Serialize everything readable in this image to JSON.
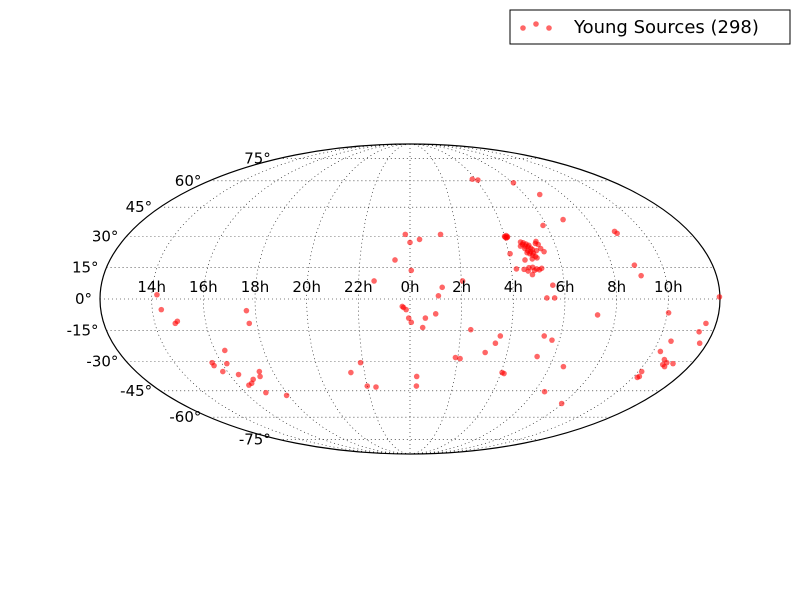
{
  "chart_data": {
    "type": "scatter",
    "projection": "mollweide",
    "grid": true,
    "legend_position": "top-right",
    "colors": {
      "points": "#ff0000",
      "grid": "#000000",
      "frame": "#000000"
    },
    "x_tick_labels": [
      {
        "ra_hours": 14,
        "label": "14h"
      },
      {
        "ra_hours": 16,
        "label": "16h"
      },
      {
        "ra_hours": 18,
        "label": "18h"
      },
      {
        "ra_hours": 20,
        "label": "20h"
      },
      {
        "ra_hours": 22,
        "label": "22h"
      },
      {
        "ra_hours": 0,
        "label": "0h"
      },
      {
        "ra_hours": 2,
        "label": "2h"
      },
      {
        "ra_hours": 4,
        "label": "4h"
      },
      {
        "ra_hours": 6,
        "label": "6h"
      },
      {
        "ra_hours": 8,
        "label": "8h"
      },
      {
        "ra_hours": 10,
        "label": "10h"
      }
    ],
    "y_tick_labels": [
      {
        "dec": 75,
        "label": "75°"
      },
      {
        "dec": 60,
        "label": "60°"
      },
      {
        "dec": 45,
        "label": "45°"
      },
      {
        "dec": 30,
        "label": "30°"
      },
      {
        "dec": 15,
        "label": "15°"
      },
      {
        "dec": 0,
        "label": "0°"
      },
      {
        "dec": -15,
        "label": "-15°"
      },
      {
        "dec": -30,
        "label": "-30°"
      },
      {
        "dec": -45,
        "label": "-45°"
      },
      {
        "dec": -60,
        "label": "-60°"
      },
      {
        "dec": -75,
        "label": "-75°"
      }
    ],
    "series": [
      {
        "name": "Young Sources (298)",
        "points": [
          [
            4.05,
            29.2
          ],
          [
            4.1,
            29.5
          ],
          [
            4.0,
            30.0
          ],
          [
            4.08,
            30.4
          ],
          [
            4.12,
            29.8
          ],
          [
            4.02,
            29.6
          ],
          [
            4.6,
            27.2
          ],
          [
            4.7,
            26.8
          ],
          [
            4.8,
            26.2
          ],
          [
            4.9,
            25.6
          ],
          [
            4.65,
            26.0
          ],
          [
            4.75,
            25.2
          ],
          [
            4.85,
            24.8
          ],
          [
            4.95,
            24.2
          ],
          [
            5.0,
            23.5
          ],
          [
            4.7,
            24.0
          ],
          [
            4.8,
            23.0
          ],
          [
            4.9,
            22.5
          ],
          [
            5.0,
            21.8
          ],
          [
            4.85,
            21.5
          ],
          [
            4.95,
            20.8
          ],
          [
            5.05,
            20.2
          ],
          [
            5.1,
            19.5
          ],
          [
            4.9,
            19.0
          ],
          [
            5.15,
            23.0
          ],
          [
            5.2,
            26.5
          ],
          [
            5.25,
            27.5
          ],
          [
            5.3,
            26.0
          ],
          [
            5.35,
            24.0
          ],
          [
            4.55,
            25.2
          ],
          [
            4.75,
            22.0
          ],
          [
            4.6,
            18.5
          ],
          [
            4.7,
            14.8
          ],
          [
            4.85,
            15.0
          ],
          [
            5.0,
            14.2
          ],
          [
            5.2,
            14.5
          ],
          [
            4.8,
            11.5
          ],
          [
            4.5,
            14.0
          ],
          [
            4.2,
            14.2
          ],
          [
            4.05,
            21.5
          ],
          [
            5.45,
            22.5
          ],
          [
            4.65,
            13.2
          ],
          [
            4.9,
            13.5
          ],
          [
            5.1,
            13.8
          ],
          [
            5.55,
            6.5
          ],
          [
            5.3,
            0.5
          ],
          [
            5.6,
            0.5
          ],
          [
            5.85,
            35.5
          ],
          [
            6.05,
            58.8
          ],
          [
            6.8,
            52.0
          ],
          [
            6.9,
            38.5
          ],
          [
            3.8,
            61.0
          ],
          [
            4.1,
            60.5
          ],
          [
            0.4,
            28.5
          ],
          [
            -0.2,
            31.0
          ],
          [
            0.0,
            27.0
          ],
          [
            1.3,
            31.0
          ],
          [
            -0.6,
            18.5
          ],
          [
            0.05,
            13.5
          ],
          [
            1.25,
            5.5
          ],
          [
            1.1,
            1.5
          ],
          [
            2.05,
            8.5
          ],
          [
            -1.4,
            8.5
          ],
          [
            -0.3,
            -3.5
          ],
          [
            -0.25,
            -4.0
          ],
          [
            -0.15,
            -5.0
          ],
          [
            -0.05,
            -9.0
          ],
          [
            0.05,
            -11.0
          ],
          [
            0.5,
            -13.5
          ],
          [
            1.0,
            -7.0
          ],
          [
            2.4,
            -14.5
          ],
          [
            3.6,
            -17.5
          ],
          [
            3.45,
            -21.0
          ],
          [
            3.1,
            -25.5
          ],
          [
            5.35,
            -17.5
          ],
          [
            5.7,
            -19.5
          ],
          [
            5.3,
            -27.5
          ],
          [
            4.05,
            -35.5
          ],
          [
            4.15,
            -36.0
          ],
          [
            2.1,
            -28.5
          ],
          [
            0.3,
            -37.5
          ],
          [
            0.3,
            -42.5
          ],
          [
            -2.1,
            -30.5
          ],
          [
            -2.0,
            -42.5
          ],
          [
            -2.6,
            -35.5
          ],
          [
            -1.6,
            -43.0
          ],
          [
            -6.35,
            -5.5
          ],
          [
            -6.3,
            -11.5
          ],
          [
            -9.1,
            -10.5
          ],
          [
            -7.6,
            -24.5
          ],
          [
            -8.4,
            -30.5
          ],
          [
            -8.4,
            -32.0
          ],
          [
            -7.8,
            -31.0
          ],
          [
            -8.2,
            -35.0
          ],
          [
            -7.1,
            -39.0
          ],
          [
            -7.0,
            -46.0
          ],
          [
            -6.7,
            -37.5
          ],
          [
            -7.6,
            -36.5
          ],
          [
            -6.6,
            -35.0
          ],
          [
            -6.1,
            -47.5
          ],
          [
            -7.5,
            -42.0
          ],
          [
            -7.3,
            -41.0
          ],
          [
            -9.8,
            2.0
          ],
          [
            -9.2,
            -11.5
          ],
          [
            7.3,
            -7.5
          ],
          [
            6.6,
            -32.5
          ],
          [
            6.5,
            -45.5
          ],
          [
            7.95,
            -52.0
          ],
          [
            8.85,
            31.5
          ],
          [
            8.8,
            32.5
          ],
          [
            8.9,
            16.0
          ],
          [
            9.05,
            11.0
          ],
          [
            10.05,
            -6.5
          ],
          [
            10.5,
            -20.0
          ],
          [
            10.3,
            -25.0
          ],
          [
            10.7,
            -29.0
          ],
          [
            10.9,
            -30.5
          ],
          [
            10.8,
            -31.5
          ],
          [
            10.95,
            -32.5
          ],
          [
            11.2,
            -31.0
          ],
          [
            11.45,
            -15.5
          ],
          [
            11.6,
            -11.5
          ],
          [
            11.7,
            -21.0
          ],
          [
            10.15,
            -35.0
          ],
          [
            10.25,
            -37.5
          ],
          [
            10.2,
            -38.0
          ],
          [
            11.98,
            1.0
          ],
          [
            -9.65,
            -5.0
          ],
          [
            1.9,
            -28.0
          ],
          [
            0.6,
            -9.0
          ]
        ]
      }
    ]
  }
}
